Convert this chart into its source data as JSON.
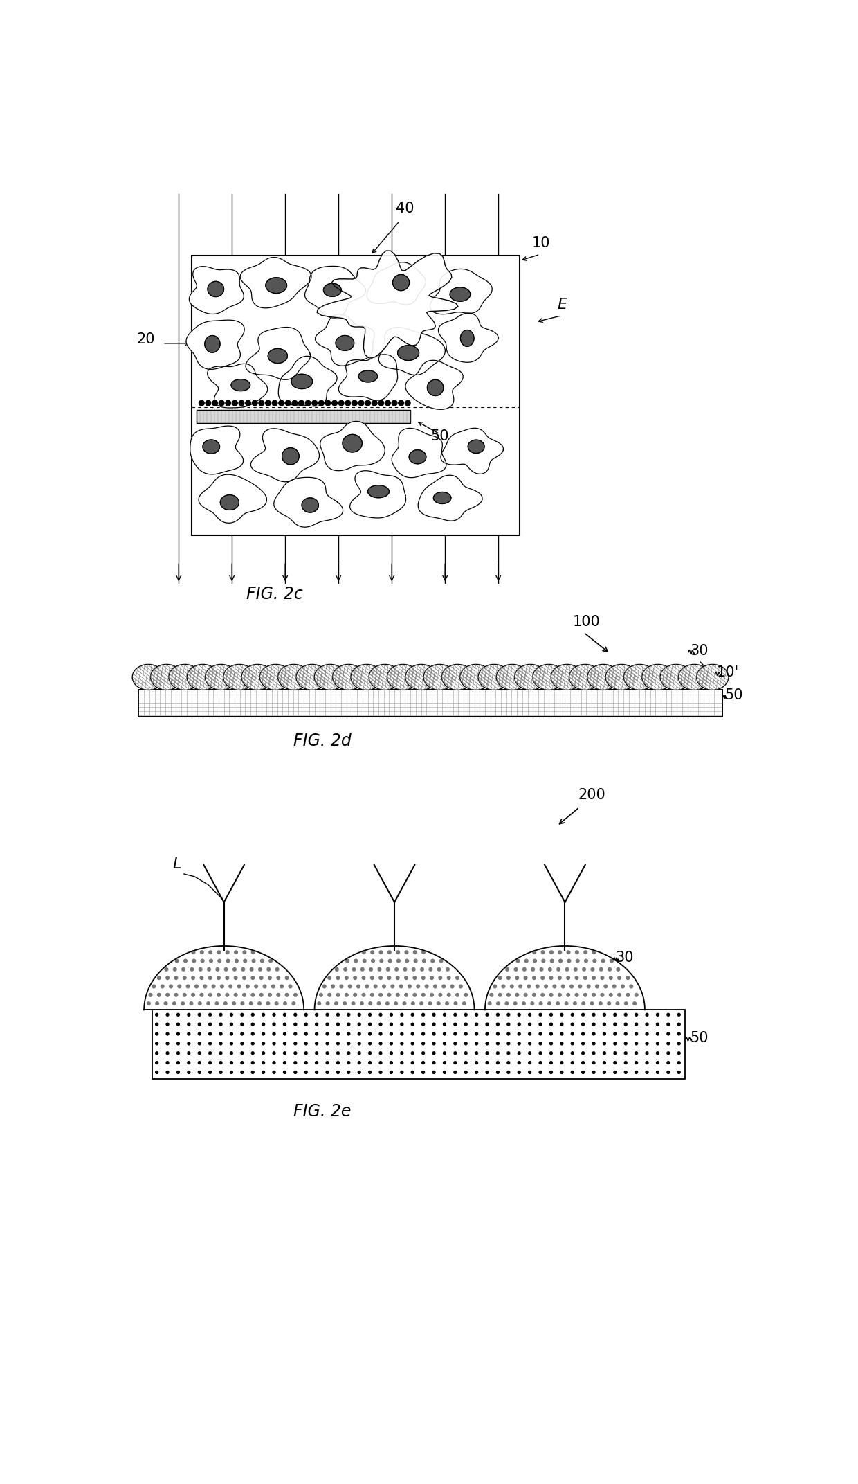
{
  "bg_color": "#ffffff",
  "fig_width": 12.4,
  "fig_height": 21.43,
  "panel_c": {
    "label": "FIG. 2c",
    "labels": {
      "20": "20",
      "10": "10",
      "40": "40",
      "E": "E",
      "50": "50"
    }
  },
  "panel_d": {
    "label": "FIG. 2d",
    "labels": {
      "100": "100",
      "30": "30",
      "10p": "10'",
      "50": "50"
    }
  },
  "panel_e": {
    "label": "FIG. 2e",
    "labels": {
      "200": "200",
      "30": "30",
      "50": "50",
      "L": "L"
    }
  }
}
